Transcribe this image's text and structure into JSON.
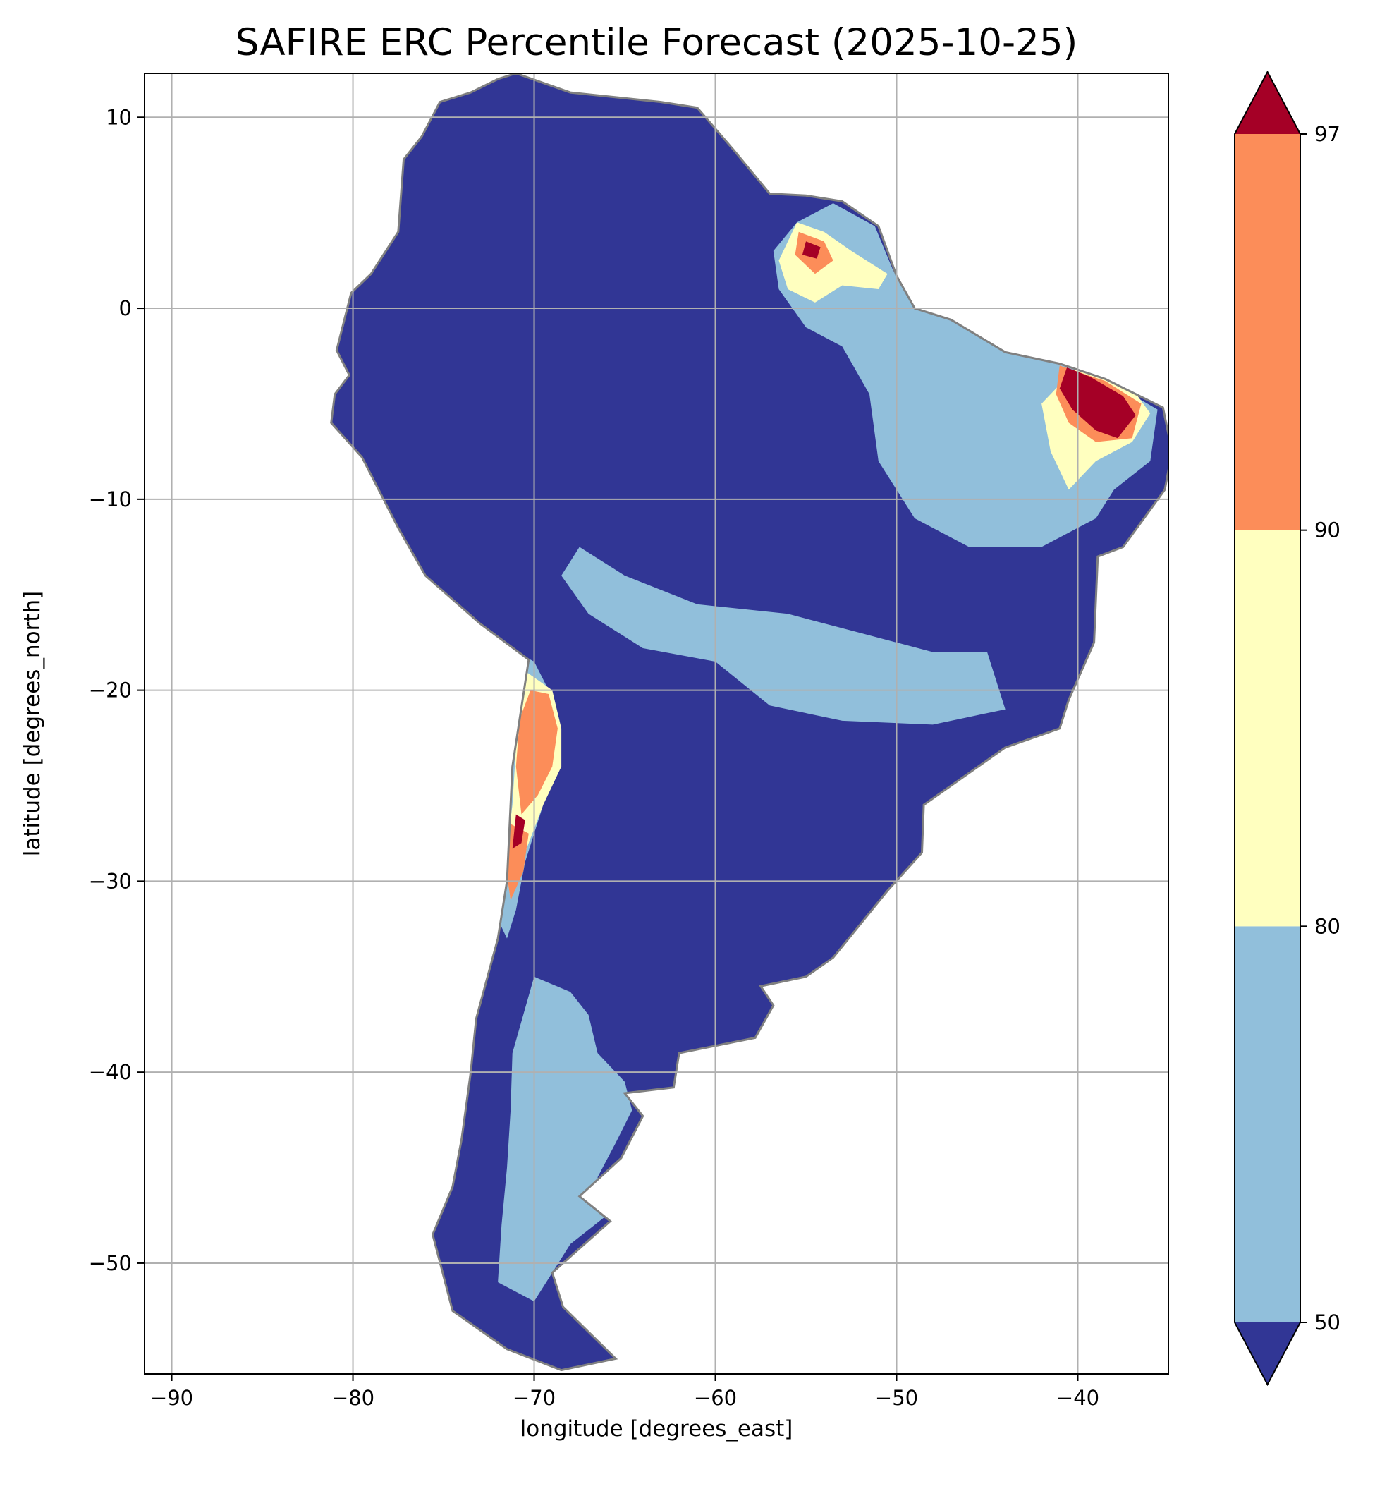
{
  "title": "SAFIRE ERC Percentile Forecast (2025-10-25)",
  "axes": {
    "xlabel": "longitude [degrees_east]",
    "ylabel": "latitude [degrees_north]",
    "xlim": [
      -91.5,
      -35
    ],
    "ylim": [
      -55.8,
      12.3
    ],
    "x_ticks": [
      -90,
      -80,
      -70,
      -60,
      -50,
      -40
    ],
    "y_ticks": [
      10,
      0,
      -10,
      -20,
      -30,
      -40,
      -50
    ],
    "x_tick_labels": [
      "−90",
      "−80",
      "−70",
      "−60",
      "−50",
      "−40"
    ],
    "y_tick_labels": [
      "10",
      "0",
      "−10",
      "−20",
      "−30",
      "−40",
      "−50"
    ],
    "grid": true
  },
  "colorbar": {
    "ticks": [
      50,
      80,
      90,
      97
    ],
    "tick_labels": [
      "50",
      "80",
      "90",
      "97"
    ],
    "extend": "both",
    "under_color": "#313695",
    "over_color": "#a50026",
    "bins": [
      {
        "from": 50,
        "to": 80,
        "color": "#91bfdb"
      },
      {
        "from": 80,
        "to": 90,
        "color": "#ffffbf"
      },
      {
        "from": 90,
        "to": 97,
        "color": "#fc8d59"
      }
    ]
  },
  "colors": {
    "land_base": "#313695",
    "border": "#808080",
    "grid": "#b0b0b0"
  },
  "chart_data": {
    "type": "heatmap",
    "title": "SAFIRE ERC Percentile Forecast (2025-10-25)",
    "xlabel": "longitude [degrees_east]",
    "ylabel": "latitude [degrees_north]",
    "xlim": [
      -91.5,
      -35
    ],
    "ylim": [
      -55.8,
      12.3
    ],
    "region": "South America",
    "coastline": [
      [
        -72,
        12
      ],
      [
        -71,
        12.3
      ],
      [
        -68,
        11.3
      ],
      [
        -63,
        10.8
      ],
      [
        -61,
        10.5
      ],
      [
        -59,
        8.3
      ],
      [
        -57,
        6
      ],
      [
        -55,
        5.9
      ],
      [
        -53,
        5.6
      ],
      [
        -51,
        4.3
      ],
      [
        -50,
        1.7
      ],
      [
        -49,
        0
      ],
      [
        -47,
        -0.6
      ],
      [
        -44,
        -2.3
      ],
      [
        -41,
        -2.9
      ],
      [
        -38.5,
        -3.7
      ],
      [
        -35.3,
        -5.2
      ],
      [
        -34.8,
        -7.5
      ],
      [
        -35.2,
        -9.5
      ],
      [
        -37.5,
        -12.5
      ],
      [
        -38.9,
        -13
      ],
      [
        -39.1,
        -17.5
      ],
      [
        -40.5,
        -20.5
      ],
      [
        -41,
        -22
      ],
      [
        -44,
        -23
      ],
      [
        -48.5,
        -26
      ],
      [
        -48.6,
        -28.5
      ],
      [
        -50.5,
        -30.5
      ],
      [
        -53.5,
        -34
      ],
      [
        -55,
        -35
      ],
      [
        -57.5,
        -35.5
      ],
      [
        -56.8,
        -36.5
      ],
      [
        -57.8,
        -38.2
      ],
      [
        -62,
        -39
      ],
      [
        -62.3,
        -40.8
      ],
      [
        -65,
        -41.1
      ],
      [
        -64,
        -42.3
      ],
      [
        -65.2,
        -44.5
      ],
      [
        -67.5,
        -46.5
      ],
      [
        -65.8,
        -47.8
      ],
      [
        -69,
        -50.5
      ],
      [
        -68.4,
        -52.3
      ],
      [
        -65.5,
        -55
      ],
      [
        -68.5,
        -55.6
      ],
      [
        -71.5,
        -54.5
      ],
      [
        -74.5,
        -52.5
      ],
      [
        -75.6,
        -48.5
      ],
      [
        -74.5,
        -46
      ],
      [
        -74,
        -43.5
      ],
      [
        -73.5,
        -40
      ],
      [
        -73.2,
        -37.2
      ],
      [
        -72,
        -33
      ],
      [
        -71.5,
        -30
      ],
      [
        -71.2,
        -24
      ],
      [
        -70.3,
        -18.4
      ],
      [
        -73,
        -16.5
      ],
      [
        -76,
        -14
      ],
      [
        -77.5,
        -11.5
      ],
      [
        -79.5,
        -7.8
      ],
      [
        -81.2,
        -6
      ],
      [
        -81,
        -4.5
      ],
      [
        -80.2,
        -3.5
      ],
      [
        -80.9,
        -2.2
      ],
      [
        -80.1,
        0.8
      ],
      [
        -79,
        1.8
      ],
      [
        -77.5,
        4
      ],
      [
        -77.2,
        7.8
      ],
      [
        -76.2,
        9
      ],
      [
        -75.2,
        10.8
      ],
      [
        -73.5,
        11.3
      ]
    ],
    "legend_bins": [
      {
        "range": "<50",
        "color": "#313695"
      },
      {
        "range": "50-80",
        "color": "#91bfdb"
      },
      {
        "range": "80-90",
        "color": "#ffffbf"
      },
      {
        "range": "90-97",
        "color": "#fc8d59"
      },
      {
        "range": ">97",
        "color": "#a50026"
      }
    ],
    "regions": [
      {
        "bin": "50-80",
        "polygon": [
          [
            -55.5,
            4.5
          ],
          [
            -53.5,
            5.5
          ],
          [
            -51.2,
            4.3
          ],
          [
            -50.2,
            2
          ],
          [
            -49,
            0
          ],
          [
            -47,
            -0.6
          ],
          [
            -44,
            -2.3
          ],
          [
            -41,
            -2.9
          ],
          [
            -38.5,
            -3.7
          ],
          [
            -35.6,
            -5.3
          ],
          [
            -36,
            -8
          ],
          [
            -38,
            -9.5
          ],
          [
            -39,
            -11
          ],
          [
            -42,
            -12.5
          ],
          [
            -46,
            -12.5
          ],
          [
            -49,
            -11
          ],
          [
            -51,
            -8
          ],
          [
            -51.5,
            -4.5
          ],
          [
            -53,
            -2
          ],
          [
            -55,
            -1
          ],
          [
            -56.5,
            1
          ],
          [
            -56.8,
            3
          ]
        ]
      },
      {
        "bin": "50-80",
        "polygon": [
          [
            -67.5,
            -12.5
          ],
          [
            -65,
            -14
          ],
          [
            -61,
            -15.5
          ],
          [
            -56,
            -16
          ],
          [
            -52,
            -17
          ],
          [
            -48,
            -18
          ],
          [
            -45,
            -18
          ],
          [
            -44,
            -21
          ],
          [
            -48,
            -21.8
          ],
          [
            -53,
            -21.6
          ],
          [
            -57,
            -20.8
          ],
          [
            -60,
            -18.5
          ],
          [
            -64,
            -17.8
          ],
          [
            -67,
            -16
          ],
          [
            -68.5,
            -14
          ]
        ]
      },
      {
        "bin": "50-80",
        "polygon": [
          [
            -70,
            -35
          ],
          [
            -68,
            -35.8
          ],
          [
            -67,
            -37
          ],
          [
            -66.5,
            -39
          ],
          [
            -65,
            -40.5
          ],
          [
            -64.6,
            -42
          ],
          [
            -65.5,
            -43.7
          ],
          [
            -66.5,
            -45.5
          ],
          [
            -66,
            -47.5
          ],
          [
            -68,
            -49
          ],
          [
            -69,
            -50.5
          ],
          [
            -70,
            -52
          ],
          [
            -72,
            -51
          ],
          [
            -71.8,
            -48
          ],
          [
            -71.5,
            -45
          ],
          [
            -71.3,
            -42
          ],
          [
            -71.2,
            -39
          ],
          [
            -70.6,
            -37
          ]
        ]
      },
      {
        "bin": "50-80",
        "polygon": [
          [
            -72,
            -17.5
          ],
          [
            -70,
            -18.5
          ],
          [
            -69.2,
            -20
          ],
          [
            -69,
            -23
          ],
          [
            -69.5,
            -26
          ],
          [
            -70.5,
            -29
          ],
          [
            -71,
            -31.5
          ],
          [
            -71.5,
            -33
          ],
          [
            -72,
            -32
          ],
          [
            -71.6,
            -28
          ],
          [
            -71.2,
            -24
          ],
          [
            -71,
            -21
          ],
          [
            -71.5,
            -19
          ]
        ]
      },
      {
        "bin": "80-90",
        "polygon": [
          [
            -55.5,
            4.5
          ],
          [
            -54,
            4
          ],
          [
            -52.5,
            3
          ],
          [
            -50.5,
            1.8
          ],
          [
            -51,
            1
          ],
          [
            -53,
            1.2
          ],
          [
            -54.5,
            0.3
          ],
          [
            -56,
            1
          ],
          [
            -56.5,
            2.5
          ]
        ]
      },
      {
        "bin": "80-90",
        "polygon": [
          [
            -40,
            -3
          ],
          [
            -37,
            -4.2
          ],
          [
            -36,
            -5.5
          ],
          [
            -37,
            -7
          ],
          [
            -39,
            -8
          ],
          [
            -40.5,
            -9.5
          ],
          [
            -41.5,
            -7.5
          ],
          [
            -42,
            -5
          ]
        ]
      },
      {
        "bin": "80-90",
        "polygon": [
          [
            -70.5,
            -19
          ],
          [
            -69,
            -20
          ],
          [
            -68.5,
            -22
          ],
          [
            -68.5,
            -24
          ],
          [
            -69.5,
            -26
          ],
          [
            -70.5,
            -28.5
          ],
          [
            -71.3,
            -31
          ],
          [
            -71.6,
            -29
          ],
          [
            -71.2,
            -26
          ],
          [
            -71,
            -23
          ],
          [
            -70.8,
            -20.5
          ]
        ]
      },
      {
        "bin": "90-97",
        "polygon": [
          [
            -55.4,
            4
          ],
          [
            -54,
            3.5
          ],
          [
            -53.5,
            2.5
          ],
          [
            -54.5,
            1.8
          ],
          [
            -55.6,
            2.8
          ]
        ]
      },
      {
        "bin": "90-97",
        "polygon": [
          [
            -41,
            -3
          ],
          [
            -38.5,
            -3.8
          ],
          [
            -36.5,
            -5
          ],
          [
            -37,
            -6.8
          ],
          [
            -39,
            -7
          ],
          [
            -40.5,
            -6
          ],
          [
            -41.2,
            -4.5
          ]
        ]
      },
      {
        "bin": "90-97",
        "polygon": [
          [
            -70.2,
            -20
          ],
          [
            -69.2,
            -20.2
          ],
          [
            -68.7,
            -22
          ],
          [
            -69,
            -24
          ],
          [
            -69.8,
            -25.5
          ],
          [
            -70.7,
            -26.5
          ],
          [
            -71,
            -24
          ],
          [
            -70.8,
            -21.5
          ]
        ]
      },
      {
        "bin": "90-97",
        "polygon": [
          [
            -71.3,
            -27
          ],
          [
            -70.3,
            -27.5
          ],
          [
            -70.6,
            -29.5
          ],
          [
            -71.3,
            -31
          ],
          [
            -71.6,
            -29
          ]
        ]
      },
      {
        "bin": ">97",
        "polygon": [
          [
            -55,
            3.5
          ],
          [
            -54.2,
            3.2
          ],
          [
            -54.4,
            2.6
          ],
          [
            -55.2,
            2.8
          ]
        ]
      },
      {
        "bin": ">97",
        "polygon": [
          [
            -40.6,
            -3.1
          ],
          [
            -39.3,
            -3.6
          ],
          [
            -37.5,
            -4.6
          ],
          [
            -36.8,
            -5.6
          ],
          [
            -37.8,
            -6.8
          ],
          [
            -39,
            -6.4
          ],
          [
            -40.3,
            -5.3
          ],
          [
            -41,
            -4.2
          ]
        ]
      },
      {
        "bin": ">97",
        "polygon": [
          [
            -71,
            -26.5
          ],
          [
            -70.5,
            -26.8
          ],
          [
            -70.7,
            -28
          ],
          [
            -71.2,
            -28.3
          ]
        ]
      }
    ]
  }
}
